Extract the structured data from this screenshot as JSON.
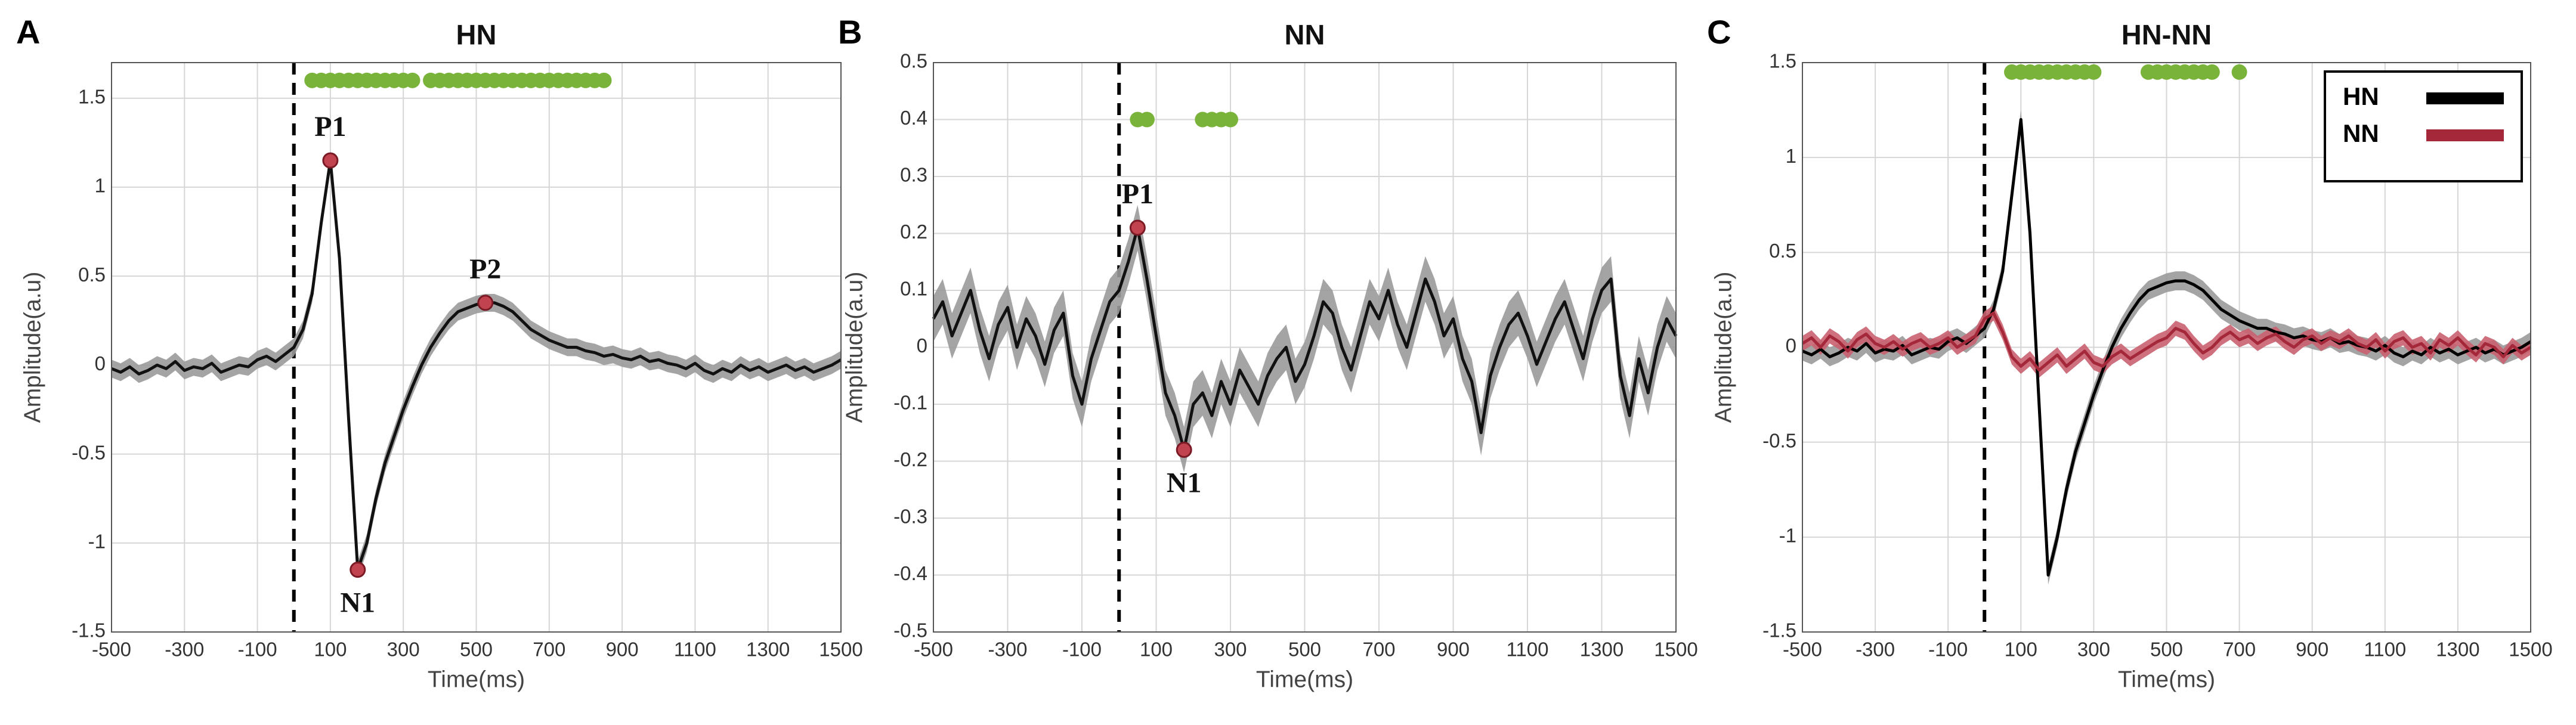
{
  "chart_data": [
    {
      "type": "line",
      "panel": "A",
      "title": "HN",
      "xlabel": "Time(ms)",
      "ylabel": "Amplitude(a.u)",
      "x": [
        -500,
        -475,
        -450,
        -425,
        -400,
        -375,
        -350,
        -325,
        -300,
        -275,
        -250,
        -225,
        -200,
        -175,
        -150,
        -125,
        -100,
        -75,
        -50,
        -25,
        0,
        25,
        50,
        75,
        100,
        125,
        150,
        175,
        200,
        225,
        250,
        275,
        300,
        325,
        350,
        375,
        400,
        425,
        450,
        475,
        500,
        525,
        550,
        575,
        600,
        625,
        650,
        675,
        700,
        725,
        750,
        775,
        800,
        825,
        850,
        875,
        900,
        925,
        950,
        975,
        1000,
        1025,
        1050,
        1075,
        1100,
        1125,
        1150,
        1175,
        1200,
        1225,
        1250,
        1275,
        1300,
        1325,
        1350,
        1375,
        1400,
        1425,
        1450,
        1475,
        1500
      ],
      "values": [
        -0.02,
        -0.04,
        -0.01,
        -0.05,
        -0.03,
        0.0,
        -0.02,
        0.02,
        -0.03,
        -0.01,
        -0.02,
        0.01,
        -0.04,
        -0.02,
        0.0,
        -0.01,
        0.03,
        0.05,
        0.02,
        0.06,
        0.1,
        0.2,
        0.4,
        0.8,
        1.15,
        0.6,
        -0.3,
        -1.15,
        -1.0,
        -0.75,
        -0.55,
        -0.4,
        -0.25,
        -0.12,
        0.0,
        0.1,
        0.18,
        0.25,
        0.3,
        0.32,
        0.34,
        0.35,
        0.35,
        0.33,
        0.3,
        0.25,
        0.2,
        0.17,
        0.14,
        0.12,
        0.1,
        0.1,
        0.08,
        0.07,
        0.05,
        0.06,
        0.04,
        0.03,
        0.05,
        0.02,
        0.03,
        0.01,
        0.0,
        -0.02,
        0.01,
        -0.03,
        -0.05,
        -0.02,
        -0.04,
        0.0,
        -0.03,
        -0.01,
        -0.04,
        -0.02,
        0.0,
        -0.03,
        -0.01,
        -0.04,
        -0.02,
        0.0,
        0.03
      ],
      "color": "#111111",
      "error": 0.05,
      "band_color": "#9a9a9a",
      "xlim": [
        -500,
        1500
      ],
      "xticks": [
        -500,
        -300,
        -100,
        100,
        300,
        500,
        700,
        900,
        1100,
        1300,
        1500
      ],
      "ylim": [
        -1.5,
        1.7
      ],
      "yticks": [
        -1.5,
        -1,
        -0.5,
        0,
        0.5,
        1,
        1.5
      ],
      "grid": true,
      "vline": 0,
      "markers": {
        "x": [
          50,
          75,
          100,
          125,
          150,
          175,
          200,
          225,
          250,
          275,
          300,
          325,
          375,
          400,
          425,
          450,
          475,
          500,
          525,
          550,
          575,
          600,
          625,
          650,
          675,
          700,
          725,
          750,
          775,
          800,
          825,
          850
        ],
        "y": 1.6,
        "color": "#7ab33a"
      },
      "annotations": [
        {
          "text": "P1",
          "x": 100,
          "y": 1.15
        },
        {
          "text": "N1",
          "x": 175,
          "y": -1.15
        },
        {
          "text": "P2",
          "x": 525,
          "y": 0.35
        }
      ]
    },
    {
      "type": "line",
      "panel": "B",
      "title": "NN",
      "xlabel": "Time(ms)",
      "ylabel": "Amplitude(a.u)",
      "x": [
        -500,
        -475,
        -450,
        -425,
        -400,
        -375,
        -350,
        -325,
        -300,
        -275,
        -250,
        -225,
        -200,
        -175,
        -150,
        -125,
        -100,
        -75,
        -50,
        -25,
        0,
        25,
        50,
        75,
        100,
        125,
        150,
        175,
        200,
        225,
        250,
        275,
        300,
        325,
        350,
        375,
        400,
        425,
        450,
        475,
        500,
        525,
        550,
        575,
        600,
        625,
        650,
        675,
        700,
        725,
        750,
        775,
        800,
        825,
        850,
        875,
        900,
        925,
        950,
        975,
        1000,
        1025,
        1050,
        1075,
        1100,
        1125,
        1150,
        1175,
        1200,
        1225,
        1250,
        1275,
        1300,
        1325,
        1350,
        1375,
        1400,
        1425,
        1450,
        1475,
        1500
      ],
      "values": [
        0.05,
        0.08,
        0.02,
        0.06,
        0.1,
        0.03,
        -0.02,
        0.04,
        0.07,
        0.0,
        0.05,
        0.02,
        -0.03,
        0.03,
        0.06,
        -0.05,
        -0.1,
        -0.02,
        0.03,
        0.08,
        0.1,
        0.15,
        0.21,
        0.12,
        0.02,
        -0.08,
        -0.12,
        -0.18,
        -0.1,
        -0.08,
        -0.12,
        -0.06,
        -0.1,
        -0.04,
        -0.07,
        -0.1,
        -0.05,
        -0.02,
        0.0,
        -0.06,
        -0.03,
        0.02,
        0.08,
        0.06,
        0.0,
        -0.04,
        0.02,
        0.08,
        0.05,
        0.1,
        0.04,
        0.0,
        0.06,
        0.12,
        0.08,
        0.02,
        0.05,
        -0.02,
        -0.06,
        -0.15,
        -0.05,
        0.0,
        0.04,
        0.06,
        0.02,
        -0.03,
        0.01,
        0.05,
        0.08,
        0.03,
        -0.02,
        0.05,
        0.1,
        0.12,
        -0.05,
        -0.12,
        -0.02,
        -0.08,
        0.0,
        0.05,
        0.02
      ],
      "color": "#111111",
      "error": 0.04,
      "band_color": "#9a9a9a",
      "xlim": [
        -500,
        1500
      ],
      "xticks": [
        -500,
        -300,
        -100,
        100,
        300,
        500,
        700,
        900,
        1100,
        1300,
        1500
      ],
      "ylim": [
        -0.5,
        0.5
      ],
      "yticks": [
        -0.5,
        -0.4,
        -0.3,
        -0.2,
        -0.1,
        0,
        0.1,
        0.2,
        0.3,
        0.4,
        0.5
      ],
      "grid": true,
      "vline": 0,
      "markers": {
        "x": [
          50,
          75,
          225,
          250,
          275,
          300
        ],
        "y": 0.4,
        "color": "#7ab33a"
      },
      "annotations": [
        {
          "text": "P1",
          "x": 50,
          "y": 0.21
        },
        {
          "text": "N1",
          "x": 175,
          "y": -0.18
        }
      ]
    },
    {
      "type": "line",
      "panel": "C",
      "title": "HN-NN",
      "xlabel": "Time(ms)",
      "ylabel": "Amplitude(a.u)",
      "x": [
        -500,
        -475,
        -450,
        -425,
        -400,
        -375,
        -350,
        -325,
        -300,
        -275,
        -250,
        -225,
        -200,
        -175,
        -150,
        -125,
        -100,
        -75,
        -50,
        -25,
        0,
        25,
        50,
        75,
        100,
        125,
        150,
        175,
        200,
        225,
        250,
        275,
        300,
        325,
        350,
        375,
        400,
        425,
        450,
        475,
        500,
        525,
        550,
        575,
        600,
        625,
        650,
        675,
        700,
        725,
        750,
        775,
        800,
        825,
        850,
        875,
        900,
        925,
        950,
        975,
        1000,
        1025,
        1050,
        1075,
        1100,
        1125,
        1150,
        1175,
        1200,
        1225,
        1250,
        1275,
        1300,
        1325,
        1350,
        1375,
        1400,
        1425,
        1450,
        1475,
        1500
      ],
      "series": [
        {
          "name": "HN",
          "color": "#000000",
          "error": 0.05,
          "band_color": "#9a9a9a",
          "values": [
            -0.02,
            -0.04,
            -0.01,
            -0.05,
            -0.03,
            0.0,
            -0.02,
            0.02,
            -0.03,
            -0.01,
            -0.02,
            0.01,
            -0.04,
            -0.02,
            0.0,
            -0.01,
            0.03,
            0.05,
            0.02,
            0.06,
            0.1,
            0.2,
            0.4,
            0.8,
            1.2,
            0.6,
            -0.3,
            -1.2,
            -1.0,
            -0.75,
            -0.55,
            -0.4,
            -0.25,
            -0.12,
            0.0,
            0.1,
            0.18,
            0.25,
            0.3,
            0.32,
            0.34,
            0.35,
            0.35,
            0.33,
            0.3,
            0.25,
            0.2,
            0.17,
            0.14,
            0.12,
            0.1,
            0.1,
            0.08,
            0.07,
            0.05,
            0.06,
            0.04,
            0.03,
            0.05,
            0.02,
            0.03,
            0.01,
            0.0,
            -0.02,
            0.01,
            -0.03,
            -0.05,
            -0.02,
            -0.04,
            0.0,
            -0.03,
            -0.01,
            -0.04,
            -0.02,
            0.0,
            -0.03,
            -0.01,
            -0.04,
            -0.02,
            0.0,
            0.03
          ]
        },
        {
          "name": "NN",
          "color": "#a5283a",
          "error": 0.04,
          "band_color": "#c9606f",
          "values": [
            0.02,
            0.05,
            0.0,
            0.06,
            0.03,
            -0.02,
            0.04,
            0.07,
            0.02,
            0.0,
            0.03,
            -0.01,
            0.02,
            0.04,
            0.0,
            0.02,
            0.05,
            0.0,
            0.03,
            0.06,
            0.15,
            0.18,
            0.08,
            -0.05,
            -0.1,
            -0.06,
            -0.12,
            -0.08,
            -0.04,
            -0.1,
            -0.06,
            -0.02,
            -0.08,
            -0.1,
            -0.05,
            -0.02,
            -0.06,
            -0.03,
            0.0,
            0.03,
            0.05,
            0.1,
            0.08,
            0.02,
            -0.03,
            0.0,
            0.05,
            0.08,
            0.04,
            0.06,
            0.02,
            0.05,
            0.07,
            0.03,
            0.0,
            0.04,
            0.06,
            0.02,
            0.05,
            0.03,
            0.06,
            0.02,
            0.0,
            0.04,
            -0.02,
            0.03,
            0.05,
            0.0,
            0.02,
            -0.03,
            0.04,
            0.01,
            0.05,
            0.0,
            -0.04,
            0.02,
            0.0,
            -0.05,
            0.01,
            -0.03,
            0.0
          ]
        }
      ],
      "xlim": [
        -500,
        1500
      ],
      "xticks": [
        -500,
        -300,
        -100,
        100,
        300,
        500,
        700,
        900,
        1100,
        1300,
        1500
      ],
      "ylim": [
        -1.5,
        1.5
      ],
      "yticks": [
        -1.5,
        -1,
        -0.5,
        0,
        0.5,
        1,
        1.5
      ],
      "grid": true,
      "vline": 0,
      "legend": "upper right",
      "markers": {
        "x": [
          75,
          100,
          125,
          150,
          175,
          200,
          225,
          250,
          275,
          300,
          450,
          475,
          500,
          525,
          550,
          575,
          600,
          625,
          700
        ],
        "y": 1.45,
        "color": "#7ab33a"
      }
    }
  ]
}
